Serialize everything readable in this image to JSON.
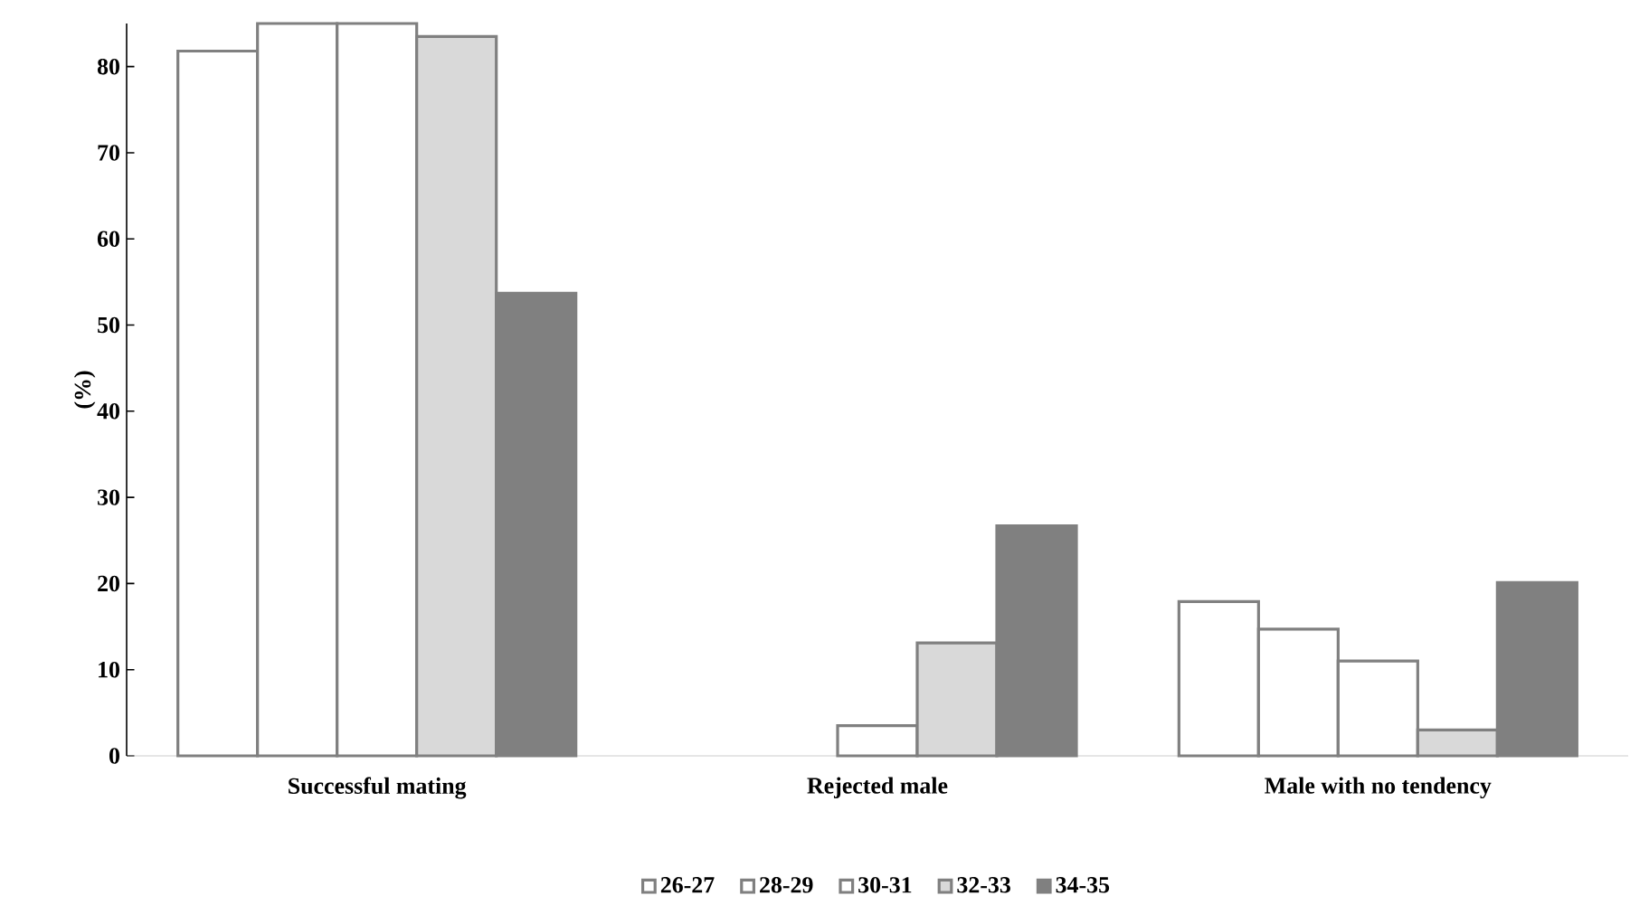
{
  "chart_data": {
    "type": "bar",
    "ylabel": "(%)",
    "categories": [
      "Successful mating",
      "Rejected male",
      "Male with no tendency"
    ],
    "series": [
      {
        "name": "26-27",
        "color": "#ffffff",
        "values": [
          81.8,
          null,
          17.9
        ]
      },
      {
        "name": "28-29",
        "color": "#ffffff",
        "values": [
          85,
          null,
          14.7
        ]
      },
      {
        "name": "30-31",
        "color": "#ffffff",
        "values": [
          85,
          3.5,
          11
        ]
      },
      {
        "name": "32-33",
        "color": "#d9d9d9",
        "values": [
          83.5,
          13.1,
          3
        ]
      },
      {
        "name": "34-35",
        "color": "#808080",
        "values": [
          53.7,
          26.7,
          20.1
        ]
      }
    ],
    "ylim": [
      0,
      85
    ],
    "yticks": [
      0,
      10,
      20,
      30,
      40,
      50,
      60,
      70,
      80
    ],
    "grid": false,
    "legend": "bottom"
  }
}
